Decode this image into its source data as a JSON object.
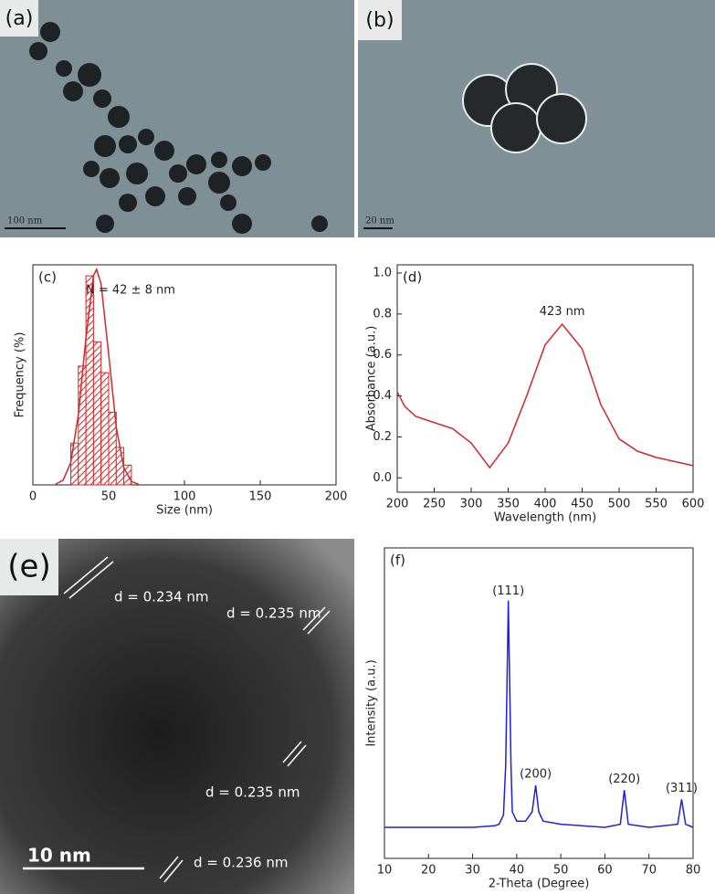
{
  "chart_data": [
    {
      "type": "histogram",
      "label": "(c)",
      "annotation": "N = 42 ± 8 nm",
      "xlabel": "Size (nm)",
      "ylabel": "Frequency (%)",
      "bins": [
        25,
        30,
        35,
        40,
        45,
        50,
        55,
        60,
        65
      ],
      "values": [
        19,
        54,
        95,
        65,
        51,
        33,
        17,
        9
      ],
      "color": "#d62728",
      "fit": {
        "x": [
          15,
          20,
          25,
          30,
          35,
          40,
          42,
          45,
          50,
          55,
          60,
          65,
          70
        ],
        "values": [
          0.3,
          2.2,
          10.2,
          31.8,
          66.8,
          95,
          98,
          91.3,
          59.4,
          26.2,
          7.8,
          1.6,
          0.2
        ]
      },
      "xlim": [
        0,
        200
      ],
      "xticks": [
        0,
        50,
        100,
        150,
        200
      ],
      "ylim": [
        0,
        100
      ]
    },
    {
      "type": "line",
      "label": "(d)",
      "annotation": {
        "text": "423 nm",
        "x": 423,
        "y": 0.81
      },
      "xlabel": "Wavelength (nm)",
      "ylabel": "Absorbance (a.u.)",
      "x": [
        200,
        210,
        225,
        250,
        275,
        300,
        325,
        350,
        375,
        400,
        423,
        450,
        475,
        500,
        525,
        550,
        575,
        600
      ],
      "values": [
        0.42,
        0.35,
        0.3,
        0.27,
        0.24,
        0.17,
        0.05,
        0.17,
        0.4,
        0.65,
        0.75,
        0.63,
        0.36,
        0.19,
        0.13,
        0.1,
        0.08,
        0.06
      ],
      "color": "#d62728",
      "xlim": [
        200,
        600
      ],
      "xticks": [
        200,
        250,
        300,
        350,
        400,
        450,
        500,
        550,
        600
      ],
      "ylim": [
        -0.07,
        1.04
      ],
      "yticks": [
        {
          "value": 0,
          "label": "0.0"
        },
        0.2,
        0.4,
        0.6,
        0.8,
        {
          "value": 1,
          "label": "1.0"
        }
      ]
    },
    {
      "type": "line",
      "label": "(f)",
      "xlabel": "2-Theta (Degree)",
      "ylabel": "Intensity (a.u.)",
      "x": [
        10,
        20,
        30,
        35,
        36,
        37,
        37.5,
        38.1,
        38.7,
        39,
        40,
        42,
        43.5,
        44.3,
        45,
        46,
        50,
        60,
        63.5,
        64.4,
        65.3,
        70,
        76.5,
        77.4,
        78.3,
        80
      ],
      "values": [
        10,
        10,
        10,
        10.5,
        11,
        14,
        30,
        83,
        30,
        15,
        12,
        12,
        15,
        23.5,
        15,
        12,
        11,
        10,
        11,
        22,
        11,
        10,
        11,
        19,
        11,
        10
      ],
      "color": "#1f1fe0",
      "xlim": [
        10,
        80
      ],
      "xticks": [
        10,
        20,
        30,
        40,
        50,
        60,
        70,
        80
      ],
      "ylim": [
        0,
        100
      ],
      "peak_labels": [
        {
          "text": "(111)",
          "x": 38.1,
          "y": 86
        },
        {
          "text": "(200)",
          "x": 44.3,
          "y": 27
        },
        {
          "text": "(220)",
          "x": 64.4,
          "y": 25.5
        },
        {
          "text": "(311)",
          "x": 77.4,
          "y": 22.5
        }
      ]
    }
  ],
  "images": [
    {
      "label": "(a)",
      "scale_bar": "100 nm"
    },
    {
      "label": "(b)",
      "scale_bar": "20 nm"
    },
    {
      "label": "(e)",
      "scale_bar": "10 nm",
      "annotations": [
        "d = 0.234 nm",
        "d = 0.235 nm",
        "d = 0.235 nm",
        "d = 0.236 nm"
      ]
    }
  ]
}
